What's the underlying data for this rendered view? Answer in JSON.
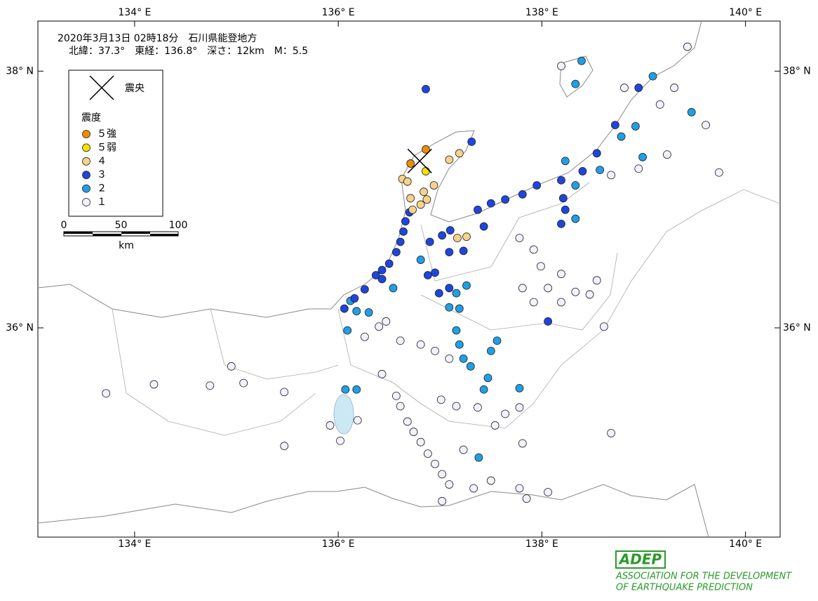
{
  "chart_data": {
    "type": "map",
    "title": "2020年3月13日 02時18分　石川県能登地方",
    "info": "北緯：37.3°　東経：136.8°　深さ：12km　M：5.5",
    "epicenter": {
      "label": "震央",
      "lon": 136.8,
      "lat": 37.3
    },
    "legend_title": "震度",
    "xlim": [
      133.05,
      140.34
    ],
    "ylim": [
      34.37,
      38.39
    ],
    "xticks": [
      {
        "value": 134,
        "label": "134° E"
      },
      {
        "value": 136,
        "label": "136° E"
      },
      {
        "value": 138,
        "label": "138° E"
      },
      {
        "value": 140,
        "label": "140° E"
      }
    ],
    "yticks": [
      {
        "value": 36,
        "label": "36° N"
      },
      {
        "value": 38,
        "label": "38° N"
      }
    ],
    "scale": {
      "ticks": [
        0,
        50,
        100
      ],
      "unit": "km"
    },
    "series": [
      {
        "name": "５強",
        "color": "#f08c00",
        "points": [
          [
            136.71,
            37.28
          ],
          [
            136.86,
            37.39
          ]
        ]
      },
      {
        "name": "５弱",
        "color": "#f5e000",
        "points": [
          [
            136.86,
            37.22
          ]
        ]
      },
      {
        "name": "４",
        "color": "#f5d38a",
        "points": [
          [
            137.19,
            37.36
          ],
          [
            137.09,
            37.31
          ],
          [
            136.63,
            37.16
          ],
          [
            136.68,
            37.14
          ],
          [
            136.84,
            37.06
          ],
          [
            136.87,
            37.0
          ],
          [
            136.81,
            36.96
          ],
          [
            136.71,
            37.01
          ],
          [
            137.26,
            36.71
          ],
          [
            137.17,
            36.7
          ],
          [
            136.94,
            37.11
          ],
          [
            136.73,
            36.92
          ]
        ]
      },
      {
        "name": "３",
        "color": "#1f45e0",
        "points": [
          [
            136.86,
            37.86
          ],
          [
            137.31,
            37.45
          ],
          [
            136.7,
            36.9
          ],
          [
            136.66,
            36.83
          ],
          [
            136.64,
            36.75
          ],
          [
            136.61,
            36.67
          ],
          [
            136.57,
            36.59
          ],
          [
            136.5,
            36.5
          ],
          [
            136.43,
            36.45
          ],
          [
            136.37,
            36.41
          ],
          [
            136.26,
            36.3
          ],
          [
            136.16,
            36.23
          ],
          [
            136.06,
            36.15
          ],
          [
            137.1,
            36.76
          ],
          [
            137.02,
            36.72
          ],
          [
            136.9,
            36.67
          ],
          [
            137.23,
            36.6
          ],
          [
            137.09,
            36.59
          ],
          [
            136.95,
            36.43
          ],
          [
            136.88,
            36.41
          ],
          [
            137.09,
            36.31
          ],
          [
            136.99,
            36.27
          ],
          [
            137.37,
            36.92
          ],
          [
            137.5,
            36.97
          ],
          [
            137.64,
            37.0
          ],
          [
            137.81,
            37.04
          ],
          [
            137.95,
            37.11
          ],
          [
            138.19,
            37.15
          ],
          [
            138.4,
            37.22
          ],
          [
            138.54,
            37.36
          ],
          [
            138.72,
            37.58
          ],
          [
            138.95,
            37.87
          ],
          [
            137.43,
            36.79
          ],
          [
            138.06,
            36.05
          ],
          [
            138.21,
            37.01
          ],
          [
            138.23,
            36.92
          ],
          [
            138.19,
            36.81
          ],
          [
            136.43,
            36.38
          ]
        ]
      },
      {
        "name": "２",
        "color": "#1fa0e6",
        "points": [
          [
            136.12,
            36.21
          ],
          [
            136.18,
            36.13
          ],
          [
            136.09,
            35.98
          ],
          [
            136.3,
            36.12
          ],
          [
            137.16,
            36.27
          ],
          [
            137.26,
            36.33
          ],
          [
            137.19,
            36.15
          ],
          [
            137.09,
            36.16
          ],
          [
            137.16,
            35.98
          ],
          [
            137.19,
            35.87
          ],
          [
            137.3,
            35.7
          ],
          [
            137.47,
            35.61
          ],
          [
            137.43,
            35.52
          ],
          [
            137.5,
            35.82
          ],
          [
            137.78,
            35.53
          ],
          [
            137.56,
            35.9
          ],
          [
            138.23,
            37.3
          ],
          [
            138.33,
            37.11
          ],
          [
            138.57,
            37.23
          ],
          [
            138.78,
            37.49
          ],
          [
            138.92,
            37.57
          ],
          [
            138.99,
            37.33
          ],
          [
            139.09,
            37.96
          ],
          [
            139.47,
            37.68
          ],
          [
            138.33,
            37.9
          ],
          [
            138.39,
            38.08
          ],
          [
            138.33,
            36.85
          ],
          [
            136.54,
            36.31
          ],
          [
            136.81,
            36.53
          ],
          [
            136.07,
            35.52
          ],
          [
            136.18,
            35.52
          ],
          [
            137.38,
            34.99
          ],
          [
            137.23,
            35.76
          ]
        ]
      },
      {
        "name": "１",
        "color": "#f2f2ff",
        "points": [
          [
            133.72,
            35.49
          ],
          [
            134.19,
            35.56
          ],
          [
            134.74,
            35.55
          ],
          [
            134.95,
            35.7
          ],
          [
            135.07,
            35.57
          ],
          [
            135.47,
            35.5
          ],
          [
            135.47,
            35.08
          ],
          [
            135.92,
            35.24
          ],
          [
            136.02,
            35.12
          ],
          [
            136.19,
            35.28
          ],
          [
            136.43,
            35.64
          ],
          [
            136.57,
            35.47
          ],
          [
            136.61,
            35.39
          ],
          [
            136.68,
            35.27
          ],
          [
            136.74,
            35.19
          ],
          [
            136.81,
            35.11
          ],
          [
            136.88,
            35.02
          ],
          [
            136.95,
            34.94
          ],
          [
            137.02,
            34.86
          ],
          [
            137.09,
            34.78
          ],
          [
            137.23,
            35.05
          ],
          [
            137.02,
            34.65
          ],
          [
            137.33,
            34.75
          ],
          [
            137.5,
            34.81
          ],
          [
            137.78,
            34.75
          ],
          [
            137.85,
            34.67
          ],
          [
            138.06,
            34.72
          ],
          [
            137.81,
            35.1
          ],
          [
            138.68,
            35.18
          ],
          [
            137.78,
            35.38
          ],
          [
            137.64,
            35.33
          ],
          [
            137.54,
            35.24
          ],
          [
            137.37,
            35.38
          ],
          [
            137.16,
            35.39
          ],
          [
            137.01,
            35.44
          ],
          [
            136.47,
            36.05
          ],
          [
            136.61,
            35.9
          ],
          [
            136.81,
            35.87
          ],
          [
            136.95,
            35.82
          ],
          [
            137.09,
            35.76
          ],
          [
            137.81,
            36.31
          ],
          [
            137.92,
            36.2
          ],
          [
            137.99,
            36.48
          ],
          [
            138.19,
            36.42
          ],
          [
            138.33,
            36.28
          ],
          [
            138.47,
            36.26
          ],
          [
            138.61,
            36.01
          ],
          [
            138.54,
            36.37
          ],
          [
            138.68,
            37.19
          ],
          [
            138.95,
            37.24
          ],
          [
            139.23,
            37.35
          ],
          [
            139.16,
            37.74
          ],
          [
            139.3,
            37.87
          ],
          [
            139.43,
            38.19
          ],
          [
            139.61,
            37.58
          ],
          [
            139.74,
            37.21
          ],
          [
            138.19,
            38.04
          ],
          [
            138.81,
            37.87
          ],
          [
            137.78,
            36.7
          ],
          [
            137.92,
            36.61
          ],
          [
            138.06,
            36.31
          ],
          [
            138.19,
            36.2
          ],
          [
            136.26,
            35.93
          ],
          [
            136.4,
            36.01
          ]
        ]
      }
    ],
    "logo": {
      "mark": "ADEP",
      "line1": "ASSOCIATION FOR THE DEVELOPMENT",
      "line2": "OF EARTHQUAKE PREDICTION"
    }
  }
}
